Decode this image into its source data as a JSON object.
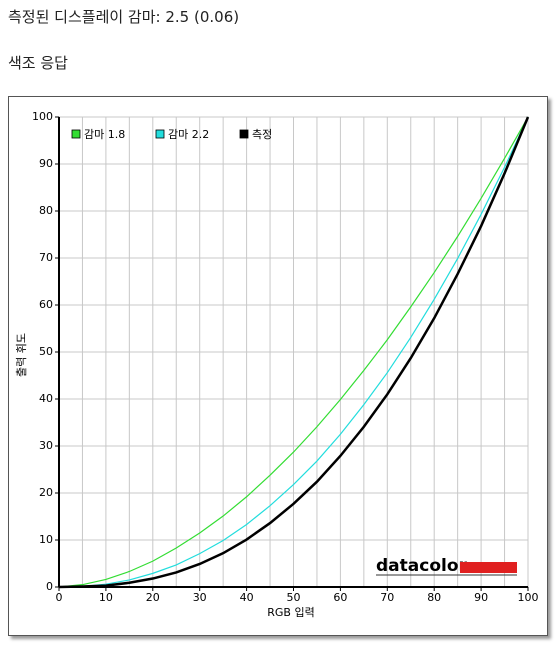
{
  "page": {
    "heading": "측정된 디스플레이 감마: 2.5 (0.06)",
    "section": "색조 응답"
  },
  "chart_data": {
    "type": "line",
    "xlabel": "RGB 입력",
    "ylabel": "출력 휘도",
    "watermark": "datacolor",
    "x": [
      0,
      5,
      10,
      15,
      20,
      25,
      30,
      35,
      40,
      45,
      50,
      55,
      60,
      65,
      70,
      75,
      80,
      85,
      90,
      95,
      100
    ],
    "series": [
      {
        "name": "감마 1.8",
        "color": "#33dd33",
        "values": [
          0,
          0.5,
          1.6,
          3.3,
          5.5,
          8.3,
          11.5,
          15.1,
          19.2,
          23.8,
          28.7,
          34.1,
          39.9,
          46.1,
          52.6,
          59.6,
          66.9,
          74.6,
          82.7,
          91.2,
          100
        ]
      },
      {
        "name": "감마 2.2",
        "color": "#22dddd",
        "values": [
          0,
          0.1,
          0.6,
          1.5,
          2.9,
          4.7,
          7.1,
          9.9,
          13.3,
          17.3,
          21.8,
          26.8,
          32.5,
          38.8,
          45.6,
          53.1,
          61.2,
          69.9,
          79.3,
          89.3,
          100
        ]
      },
      {
        "name": "측정",
        "color": "#000000",
        "values": [
          0,
          0.1,
          0.3,
          0.9,
          1.8,
          3.1,
          4.9,
          7.2,
          10.1,
          13.6,
          17.7,
          22.4,
          27.9,
          34.1,
          41.0,
          48.7,
          57.2,
          66.6,
          76.8,
          88.0,
          100
        ]
      }
    ],
    "xlim": [
      0,
      100
    ],
    "ylim": [
      0,
      100
    ],
    "xticks": [
      0,
      10,
      20,
      30,
      40,
      50,
      60,
      70,
      80,
      90,
      100
    ],
    "x_minor_ticks": [
      5,
      15,
      25,
      35,
      45,
      55,
      65,
      75,
      85,
      95
    ],
    "yticks": [
      0,
      10,
      20,
      30,
      40,
      50,
      60,
      70,
      80,
      90,
      100
    ],
    "grid": true,
    "legend": "top-left"
  }
}
